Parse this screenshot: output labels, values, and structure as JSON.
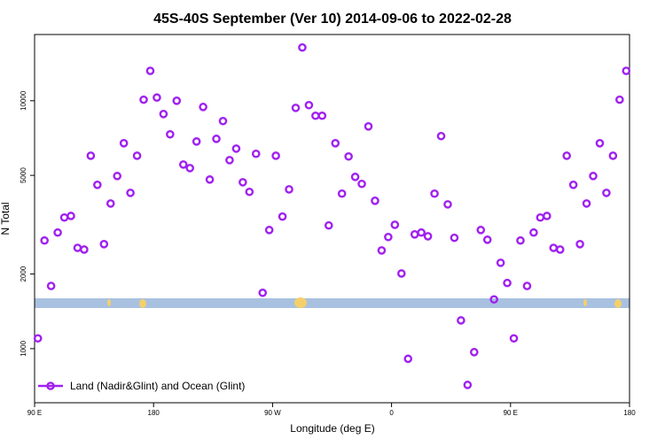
{
  "chart_data": {
    "type": "scatter",
    "title": "45S-40S September (Ver 10)   2014-09-06 to 2022-02-28",
    "x_label": "Longitude (deg E)",
    "y_label": "N Total",
    "log_y": true,
    "legend_position": "bottom-left",
    "xlim": [
      90,
      540
    ],
    "ylim": [
      605,
      18500
    ],
    "xticks": [
      {
        "value": 90,
        "label": "90 E"
      },
      {
        "value": 180,
        "label": "180"
      },
      {
        "value": 270,
        "label": "90 W"
      },
      {
        "value": 360,
        "label": "0"
      },
      {
        "value": 450,
        "label": "90 E"
      },
      {
        "value": 540,
        "label": "180"
      }
    ],
    "yticks": [
      1000,
      2000,
      5000,
      10000
    ],
    "x": [
      92.5,
      97.5,
      102.5,
      107.5,
      112.5,
      117.5,
      122.5,
      127.5,
      132.5,
      137.5,
      142.5,
      147.5,
      152.5,
      157.5,
      162.5,
      167.5,
      172.5,
      177.5,
      182.5,
      187.5,
      192.5,
      197.5,
      202.5,
      207.5,
      212.5,
      217.5,
      222.5,
      227.5,
      232.5,
      237.5,
      242.5,
      247.5,
      252.5,
      257.5,
      262.5,
      267.5,
      272.5,
      277.5,
      282.5,
      287.5,
      292.5,
      297.5,
      302.5,
      307.5,
      312.5,
      317.5,
      322.5,
      327.5,
      332.5,
      337.5,
      342.5,
      347.5,
      352.5,
      357.5,
      362.5,
      367.5,
      372.5,
      377.5,
      382.5,
      387.5,
      392.5,
      397.5,
      402.5,
      407.5,
      412.5,
      417.5,
      422.5,
      427.5,
      432.5,
      437.5,
      442.5,
      447.5,
      452.5,
      457.5,
      462.5,
      467.5,
      472.5,
      477.5,
      482.5,
      487.5,
      492.5,
      497.5,
      502.5,
      507.5,
      512.5,
      517.5,
      522.5,
      527.5,
      532.5,
      537.5
    ],
    "series": [
      {
        "name": "Land (Nadir&Glint) and Ocean (Glint)",
        "color": "#a020f0",
        "values": [
          1100,
          2730,
          1790,
          2940,
          3380,
          3430,
          2550,
          2510,
          6000,
          4580,
          2640,
          3850,
          4970,
          6740,
          4250,
          6000,
          10100,
          13200,
          10300,
          8840,
          7320,
          10000,
          5530,
          5350,
          6850,
          9440,
          4810,
          7020,
          8280,
          5760,
          6410,
          4690,
          4290,
          6110,
          1680,
          3010,
          6000,
          3410,
          4390,
          9360,
          16400,
          9600,
          8700,
          8700,
          3140,
          6740,
          4220,
          5960,
          4930,
          4620,
          7880,
          3950,
          2490,
          2820,
          3160,
          2010,
          910,
          2890,
          2940,
          2840,
          4220,
          7200,
          3820,
          2800,
          1300,
          714,
          968,
          3010,
          2750,
          1580,
          2220,
          1840,
          1100,
          2730,
          1790,
          2940,
          3380,
          3430,
          2550,
          2510,
          6000,
          4580,
          2640,
          3850,
          4970,
          6740,
          4250,
          6000,
          10100,
          13200
        ]
      }
    ]
  }
}
